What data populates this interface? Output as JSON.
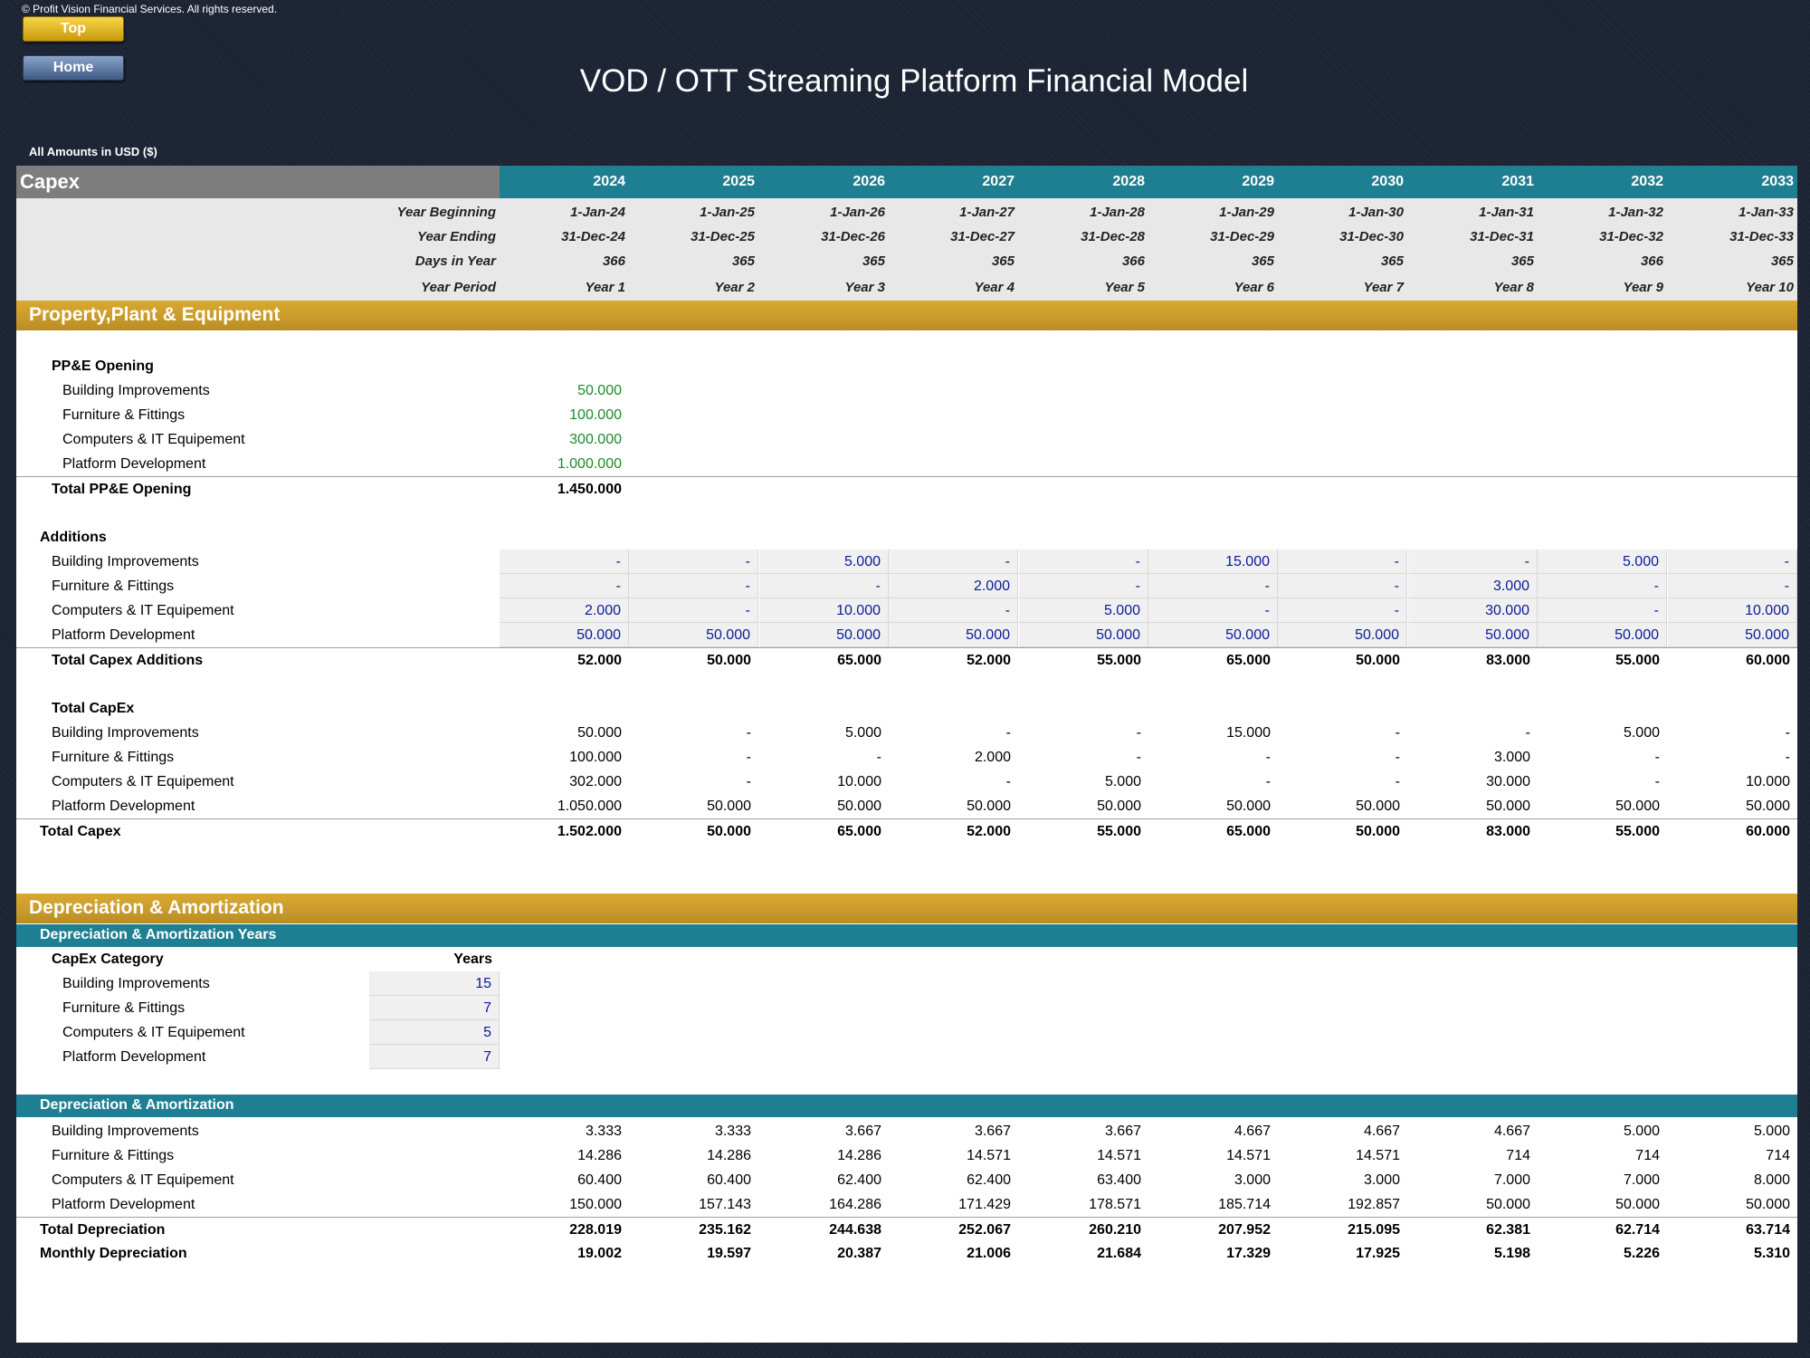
{
  "copyright": "© Profit Vision Financial Services. All rights reserved.",
  "nav": {
    "top_label": "Top",
    "home_label": "Home"
  },
  "title": "VOD / OTT Streaming Platform Financial Model",
  "currency_note": "All Amounts in  USD ($)",
  "section_header": "Capex",
  "years": [
    "2024",
    "2025",
    "2026",
    "2027",
    "2028",
    "2029",
    "2030",
    "2031",
    "2032",
    "2033"
  ],
  "meta": {
    "year_beginning_label": "Year Beginning",
    "year_ending_label": "Year Ending",
    "days_label": "Days in Year",
    "period_label": "Year Period",
    "year_beginning": [
      "1-Jan-24",
      "1-Jan-25",
      "1-Jan-26",
      "1-Jan-27",
      "1-Jan-28",
      "1-Jan-29",
      "1-Jan-30",
      "1-Jan-31",
      "1-Jan-32",
      "1-Jan-33"
    ],
    "year_ending": [
      "31-Dec-24",
      "31-Dec-25",
      "31-Dec-26",
      "31-Dec-27",
      "31-Dec-28",
      "31-Dec-29",
      "31-Dec-30",
      "31-Dec-31",
      "31-Dec-32",
      "31-Dec-33"
    ],
    "days": [
      "366",
      "365",
      "365",
      "365",
      "366",
      "365",
      "365",
      "365",
      "366",
      "365"
    ],
    "period": [
      "Year 1",
      "Year 2",
      "Year 3",
      "Year 4",
      "Year 5",
      "Year 6",
      "Year 7",
      "Year 8",
      "Year 9",
      "Year 10"
    ]
  },
  "ppe": {
    "title": "Property,Plant & Equipment",
    "opening_title": "PP&E Opening",
    "opening": [
      {
        "label": "Building Improvements",
        "value": "50.000"
      },
      {
        "label": "Furniture & Fittings",
        "value": "100.000"
      },
      {
        "label": "Computers & IT Equipement",
        "value": "300.000"
      },
      {
        "label": "Platform Development",
        "value": "1.000.000"
      }
    ],
    "opening_total": {
      "label": "Total PP&E Opening",
      "value": "1.450.000"
    },
    "additions_title": "Additions",
    "additions": [
      {
        "label": "Building Improvements",
        "values": [
          "-",
          "-",
          "5.000",
          "-",
          "-",
          "15.000",
          "-",
          "-",
          "5.000",
          "-"
        ]
      },
      {
        "label": "Furniture & Fittings",
        "values": [
          "-",
          "-",
          "-",
          "2.000",
          "-",
          "-",
          "-",
          "3.000",
          "-",
          "-"
        ]
      },
      {
        "label": "Computers & IT Equipement",
        "values": [
          "2.000",
          "-",
          "10.000",
          "-",
          "5.000",
          "-",
          "-",
          "30.000",
          "-",
          "10.000"
        ]
      },
      {
        "label": "Platform Development",
        "values": [
          "50.000",
          "50.000",
          "50.000",
          "50.000",
          "50.000",
          "50.000",
          "50.000",
          "50.000",
          "50.000",
          "50.000"
        ]
      }
    ],
    "additions_total": {
      "label": "Total Capex Additions",
      "values": [
        "52.000",
        "50.000",
        "65.000",
        "52.000",
        "55.000",
        "65.000",
        "50.000",
        "83.000",
        "55.000",
        "60.000"
      ]
    },
    "capex_title": "Total CapEx",
    "capex": [
      {
        "label": "Building Improvements",
        "values": [
          "50.000",
          "-",
          "5.000",
          "-",
          "-",
          "15.000",
          "-",
          "-",
          "5.000",
          "-"
        ]
      },
      {
        "label": "Furniture & Fittings",
        "values": [
          "100.000",
          "-",
          "-",
          "2.000",
          "-",
          "-",
          "-",
          "3.000",
          "-",
          "-"
        ]
      },
      {
        "label": "Computers & IT Equipement",
        "values": [
          "302.000",
          "-",
          "10.000",
          "-",
          "5.000",
          "-",
          "-",
          "30.000",
          "-",
          "10.000"
        ]
      },
      {
        "label": "Platform Development",
        "values": [
          "1.050.000",
          "50.000",
          "50.000",
          "50.000",
          "50.000",
          "50.000",
          "50.000",
          "50.000",
          "50.000",
          "50.000"
        ]
      }
    ],
    "capex_total": {
      "label": "Total Capex",
      "values": [
        "1.502.000",
        "50.000",
        "65.000",
        "52.000",
        "55.000",
        "65.000",
        "50.000",
        "83.000",
        "55.000",
        "60.000"
      ]
    }
  },
  "da": {
    "title": "Depreciation & Amortization",
    "years_title": "Depreciation & Amortization Years",
    "category_header": "CapEx Category",
    "years_header": "Years",
    "categories": [
      {
        "label": "Building Improvements",
        "years": "15"
      },
      {
        "label": "Furniture & Fittings",
        "years": "7"
      },
      {
        "label": "Computers & IT Equipement",
        "years": "5"
      },
      {
        "label": "Platform Development",
        "years": "7"
      }
    ],
    "schedule_title": "Depreciation & Amortization",
    "rows": [
      {
        "label": "Building Improvements",
        "values": [
          "3.333",
          "3.333",
          "3.667",
          "3.667",
          "3.667",
          "4.667",
          "4.667",
          "4.667",
          "5.000",
          "5.000"
        ]
      },
      {
        "label": "Furniture & Fittings",
        "values": [
          "14.286",
          "14.286",
          "14.286",
          "14.571",
          "14.571",
          "14.571",
          "14.571",
          "714",
          "714",
          "714"
        ]
      },
      {
        "label": "Computers & IT Equipement",
        "values": [
          "60.400",
          "60.400",
          "62.400",
          "62.400",
          "63.400",
          "3.000",
          "3.000",
          "7.000",
          "7.000",
          "8.000"
        ]
      },
      {
        "label": "Platform Development",
        "values": [
          "150.000",
          "157.143",
          "164.286",
          "171.429",
          "178.571",
          "185.714",
          "192.857",
          "50.000",
          "50.000",
          "50.000"
        ]
      }
    ],
    "total": {
      "label": "Total Depreciation",
      "values": [
        "228.019",
        "235.162",
        "244.638",
        "252.067",
        "260.210",
        "207.952",
        "215.095",
        "62.381",
        "62.714",
        "63.714"
      ]
    },
    "monthly": {
      "label": "Monthly Depreciation",
      "values": [
        "19.002",
        "19.597",
        "20.387",
        "21.006",
        "21.684",
        "17.329",
        "17.925",
        "5.198",
        "5.226",
        "5.310"
      ]
    }
  }
}
